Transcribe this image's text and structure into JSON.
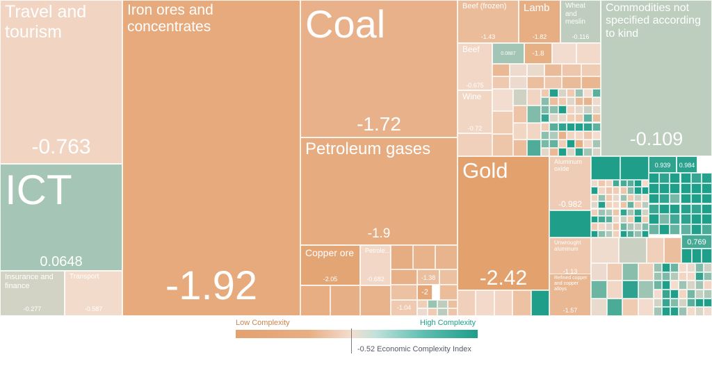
{
  "chart_data": {
    "type": "treemap",
    "color_scale": {
      "low_label": "Low Complexity",
      "high_label": "High Complexity",
      "low_color": "#e3a16e",
      "mid_color": "#f4ddd0",
      "high_color": "#1f9e89",
      "marker_value": "-0.52",
      "marker_caption": "Economic Complexity Index"
    },
    "tiles": [
      {
        "name": "Travel and tourism",
        "value": "-0.763"
      },
      {
        "name": "ICT",
        "value": "0.0648"
      },
      {
        "name": "Insurance and finance",
        "value": "-0.277"
      },
      {
        "name": "Transport",
        "value": "-0.587"
      },
      {
        "name": "Iron ores and concentrates",
        "value": "-1.92"
      },
      {
        "name": "Coal",
        "value": "-1.72"
      },
      {
        "name": "Petroleum gases",
        "value": "-1.9"
      },
      {
        "name": "Copper ore",
        "value": "-2.05"
      },
      {
        "name": "Petrole...",
        "value": "-0.682"
      },
      {
        "name": "",
        "value": "-1.38"
      },
      {
        "name": "",
        "value": "-2"
      },
      {
        "name": "",
        "value": "-1.04"
      },
      {
        "name": "Beef (frozen)",
        "value": "-1.43"
      },
      {
        "name": "Lamb",
        "value": "-1.82"
      },
      {
        "name": "Wheat and meslin",
        "value": "-0.116"
      },
      {
        "name": "Beef",
        "value": "-0.675"
      },
      {
        "name": "",
        "value": "0.0887"
      },
      {
        "name": "",
        "value": "-1.8"
      },
      {
        "name": "Wine",
        "value": "-0.72"
      },
      {
        "name": "Commodities not specified according to kind",
        "value": "-0.109"
      },
      {
        "name": "Gold",
        "value": "-2.42"
      },
      {
        "name": "Aluminum oxide",
        "value": "-0.982"
      },
      {
        "name": "Unwrought aluminum",
        "value": "-1.13"
      },
      {
        "name": "Refined copper and copper alloys",
        "value": "-1.57"
      },
      {
        "name": "",
        "value": "0.939"
      },
      {
        "name": "",
        "value": "0.984"
      },
      {
        "name": "",
        "value": "0.769"
      }
    ]
  }
}
